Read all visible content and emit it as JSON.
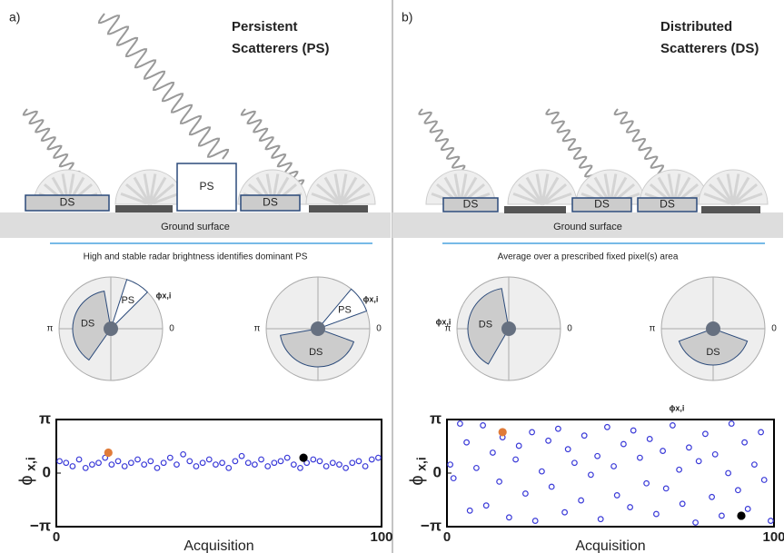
{
  "panels": [
    {
      "label": "a)",
      "title_lines": [
        "Persistent",
        "Scatterers (PS)"
      ],
      "boxes": [
        "DS",
        "PS",
        "DS"
      ],
      "ground": "Ground surface",
      "caption": "High and stable radar brightness identifies dominant PS",
      "polar": [
        {
          "pi": "π",
          "zero": "0",
          "sectors": [
            "DS",
            "PS"
          ],
          "annotation": "ϕx,i"
        },
        {
          "pi": "π",
          "zero": "0",
          "sectors": [
            "DS",
            "PS"
          ],
          "annotation": "ϕx,i"
        }
      ],
      "chart_data": {
        "type": "scatter",
        "xlabel": "Acquisition",
        "ylabel": "ϕ",
        "ylabel_sub": "x,i",
        "xlim": [
          0,
          100
        ],
        "xticks": [
          0,
          100
        ],
        "ylim": [
          -3.1416,
          3.1416
        ],
        "yticks": [
          {
            "value": -3.1416,
            "label": "−π"
          },
          0,
          {
            "value": 3.1416,
            "label": "π"
          }
        ],
        "series": [
          {
            "color": "#3a3ad8",
            "filled": false,
            "x": [
              1,
              3,
              5,
              7,
              9,
              11,
              13,
              15,
              17,
              19,
              21,
              23,
              25,
              27,
              29,
              31,
              33,
              35,
              37,
              39,
              41,
              43,
              45,
              47,
              49,
              51,
              53,
              55,
              57,
              59,
              61,
              63,
              65,
              67,
              69,
              71,
              73,
              75,
              77,
              79,
              81,
              83,
              85,
              87,
              89,
              91,
              93,
              95,
              97,
              99
            ],
            "values": [
              0.7,
              0.6,
              0.4,
              0.8,
              0.3,
              0.5,
              0.6,
              0.9,
              0.5,
              0.7,
              0.4,
              0.6,
              0.8,
              0.5,
              0.7,
              0.3,
              0.6,
              0.9,
              0.5,
              1.1,
              0.7,
              0.4,
              0.6,
              0.8,
              0.5,
              0.6,
              0.3,
              0.7,
              1.0,
              0.6,
              0.5,
              0.8,
              0.4,
              0.6,
              0.7,
              0.9,
              0.5,
              0.3,
              0.6,
              0.8,
              0.7,
              0.4,
              0.6,
              0.5,
              0.3,
              0.6,
              0.7,
              0.4,
              0.8,
              0.9
            ]
          },
          {
            "color": "#e07b39",
            "filled": true,
            "x": [
              16
            ],
            "values": [
              1.2
            ]
          },
          {
            "color": "#000000",
            "filled": true,
            "x": [
              76
            ],
            "values": [
              0.9
            ]
          }
        ]
      }
    },
    {
      "label": "b)",
      "title_lines": [
        "Distributed",
        "Scatterers (DS)"
      ],
      "boxes": [
        "DS",
        "DS",
        "DS"
      ],
      "ground": "Ground surface",
      "caption": "Average over a prescribed fixed pixel(s) area",
      "polar": [
        {
          "pi": "π",
          "zero": "0",
          "sectors": [
            "DS"
          ],
          "annotation": "ϕx,i"
        },
        {
          "pi": "π",
          "zero": "0",
          "sectors": [
            "DS"
          ],
          "annotation": "ϕx,i"
        }
      ],
      "chart_data": {
        "type": "scatter",
        "xlabel": "Acquisition",
        "ylabel": "ϕ",
        "ylabel_sub": "x,i",
        "xlim": [
          0,
          100
        ],
        "xticks": [
          0,
          100
        ],
        "ylim": [
          -3.1416,
          3.1416
        ],
        "yticks": [
          {
            "value": -3.1416,
            "label": "−π"
          },
          0,
          {
            "value": 3.1416,
            "label": "π"
          }
        ],
        "series": [
          {
            "color": "#3a3ad8",
            "filled": false,
            "x": [
              1,
              2,
              4,
              6,
              7,
              9,
              11,
              12,
              14,
              16,
              17,
              19,
              21,
              22,
              24,
              26,
              27,
              29,
              31,
              32,
              34,
              36,
              37,
              39,
              41,
              42,
              44,
              46,
              47,
              49,
              51,
              52,
              54,
              56,
              57,
              59,
              61,
              62,
              64,
              66,
              67,
              69,
              71,
              72,
              74,
              76,
              77,
              79,
              81,
              82,
              84,
              86,
              87,
              89,
              91,
              92,
              94,
              96,
              97,
              99
            ],
            "values": [
              0.5,
              -0.3,
              2.9,
              1.8,
              -2.2,
              0.3,
              2.8,
              -1.9,
              1.2,
              -0.5,
              2.1,
              -2.6,
              0.8,
              1.6,
              -1.2,
              2.4,
              -2.8,
              0.1,
              1.9,
              -0.8,
              2.6,
              -2.3,
              1.4,
              0.6,
              -1.6,
              2.2,
              -0.1,
              1.0,
              -2.7,
              2.7,
              0.4,
              -1.3,
              1.7,
              -2.0,
              2.5,
              0.9,
              -0.6,
              2.0,
              -2.4,
              1.3,
              -0.9,
              2.8,
              0.2,
              -1.8,
              1.5,
              -2.9,
              0.7,
              2.3,
              -1.4,
              1.1,
              -2.5,
              0.0,
              2.9,
              -1.0,
              1.8,
              -2.1,
              0.5,
              2.4,
              -0.4,
              -2.8
            ]
          },
          {
            "color": "#e07b39",
            "filled": true,
            "x": [
              17
            ],
            "values": [
              2.4
            ]
          },
          {
            "color": "#000000",
            "filled": true,
            "x": [
              90
            ],
            "values": [
              -2.5
            ]
          }
        ]
      }
    }
  ]
}
